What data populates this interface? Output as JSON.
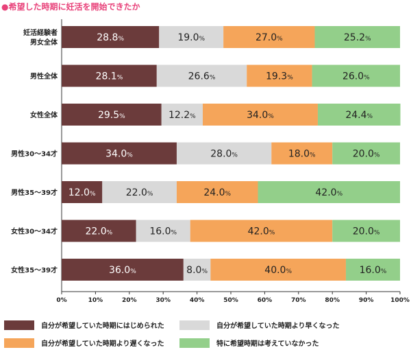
{
  "chart_data": {
    "type": "bar",
    "stacked": true,
    "orientation": "horizontal",
    "title": "●希望した時期に妊活を開始できたか",
    "categories": [
      "妊活経験者\n男女全体",
      "男性全体",
      "女性全体",
      "男性30〜34才",
      "男性35〜39才",
      "女性30〜34才",
      "女性35〜39才"
    ],
    "series": [
      {
        "name": "自分が希望していた時期にはじめられた",
        "color": "#6b3b3b",
        "values": [
          28.8,
          28.1,
          29.5,
          34.0,
          12.0,
          22.0,
          36.0
        ]
      },
      {
        "name": "自分が希望していた時期より早くなった",
        "color": "#d9d9d9",
        "values": [
          19.0,
          26.6,
          12.2,
          28.0,
          22.0,
          16.0,
          8.0
        ]
      },
      {
        "name": "自分が希望していた時期より遅くなった",
        "color": "#f5a55a",
        "values": [
          27.0,
          19.3,
          34.0,
          18.0,
          24.0,
          42.0,
          40.0
        ]
      },
      {
        "name": "特に希望時期は考えていなかった",
        "color": "#93cf8a",
        "values": [
          25.2,
          26.0,
          24.4,
          20.0,
          42.0,
          20.0,
          16.0
        ]
      }
    ],
    "value_suffix": "%",
    "xlim": [
      0,
      100
    ],
    "xticks": [
      0,
      10,
      20,
      30,
      40,
      50,
      60,
      70,
      80,
      90,
      100
    ],
    "xtick_suffix": "%",
    "legend_position": "bottom",
    "grid": false
  }
}
